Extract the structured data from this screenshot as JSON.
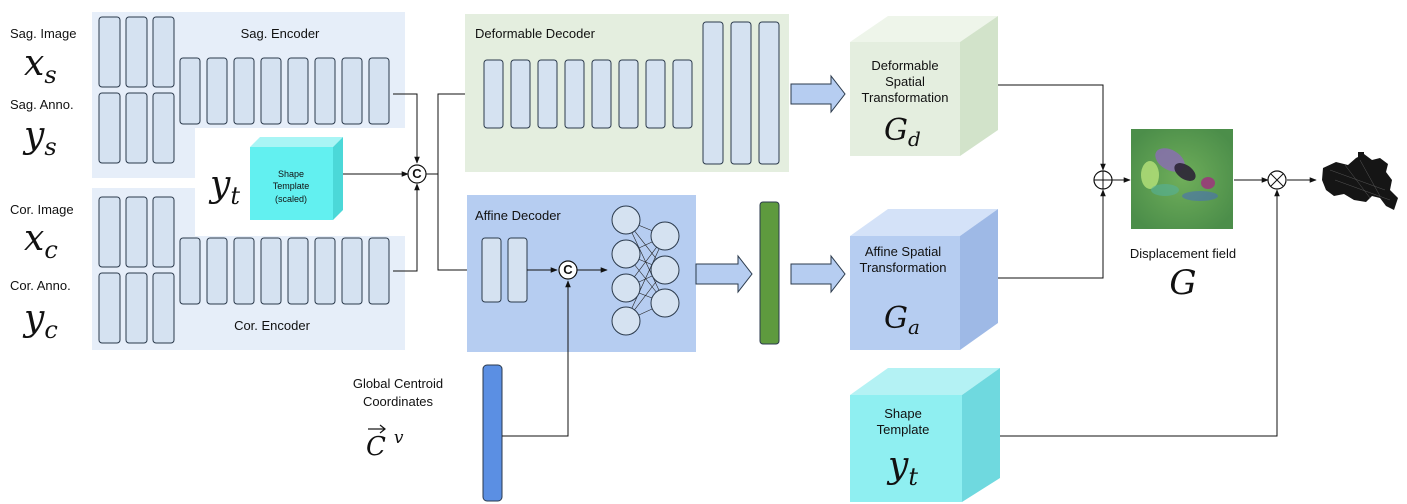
{
  "sagittal": {
    "image_label": "Sag. Image",
    "image_var": "x",
    "image_sub": "s",
    "anno_label": "Sag. Anno.",
    "anno_var": "y",
    "anno_sub": "s",
    "encoder_label": "Sag. Encoder"
  },
  "coronal": {
    "image_label": "Cor. Image",
    "image_var": "x",
    "image_sub": "c",
    "anno_label": "Cor. Anno.",
    "anno_var": "y",
    "anno_sub": "c",
    "encoder_label": "Cor. Encoder"
  },
  "shape_template_small": {
    "var": "y",
    "sub": "t",
    "line1": "Shape",
    "line2": "Template",
    "line3": "(scaled)"
  },
  "concat_symbol": "C",
  "deformable_decoder": {
    "title": "Deformable Decoder"
  },
  "affine_decoder": {
    "title": "Affine Decoder"
  },
  "global_centroid": {
    "line1": "Global Centroid",
    "line2": "Coordinates",
    "var": "C",
    "sup": "v"
  },
  "deformable_transform": {
    "line1": "Deformable",
    "line2": "Spatial",
    "line3": "Transformation",
    "var": "G",
    "sub": "d"
  },
  "affine_transform": {
    "line1": "Affine Spatial",
    "line2": "Transformation",
    "var": "G",
    "sub": "a"
  },
  "shape_template_large": {
    "line1": "Shape",
    "line2": "Template",
    "var": "y",
    "sub": "t"
  },
  "displacement": {
    "label": "Displacement field",
    "var": "G"
  },
  "ops": {
    "add": "⊕",
    "multiply": "⊗"
  },
  "colors": {
    "encoder_bg": "#e6eef9",
    "block_fill": "#d5e2f1",
    "block_stroke": "#2b3a4c",
    "deform_bg": "#e4eedf",
    "affine_bg": "#b6cdf1",
    "template_cyan": "#62f0f0",
    "green_bar": "#5e9a3e",
    "blue_bar": "#5b8fe3"
  }
}
